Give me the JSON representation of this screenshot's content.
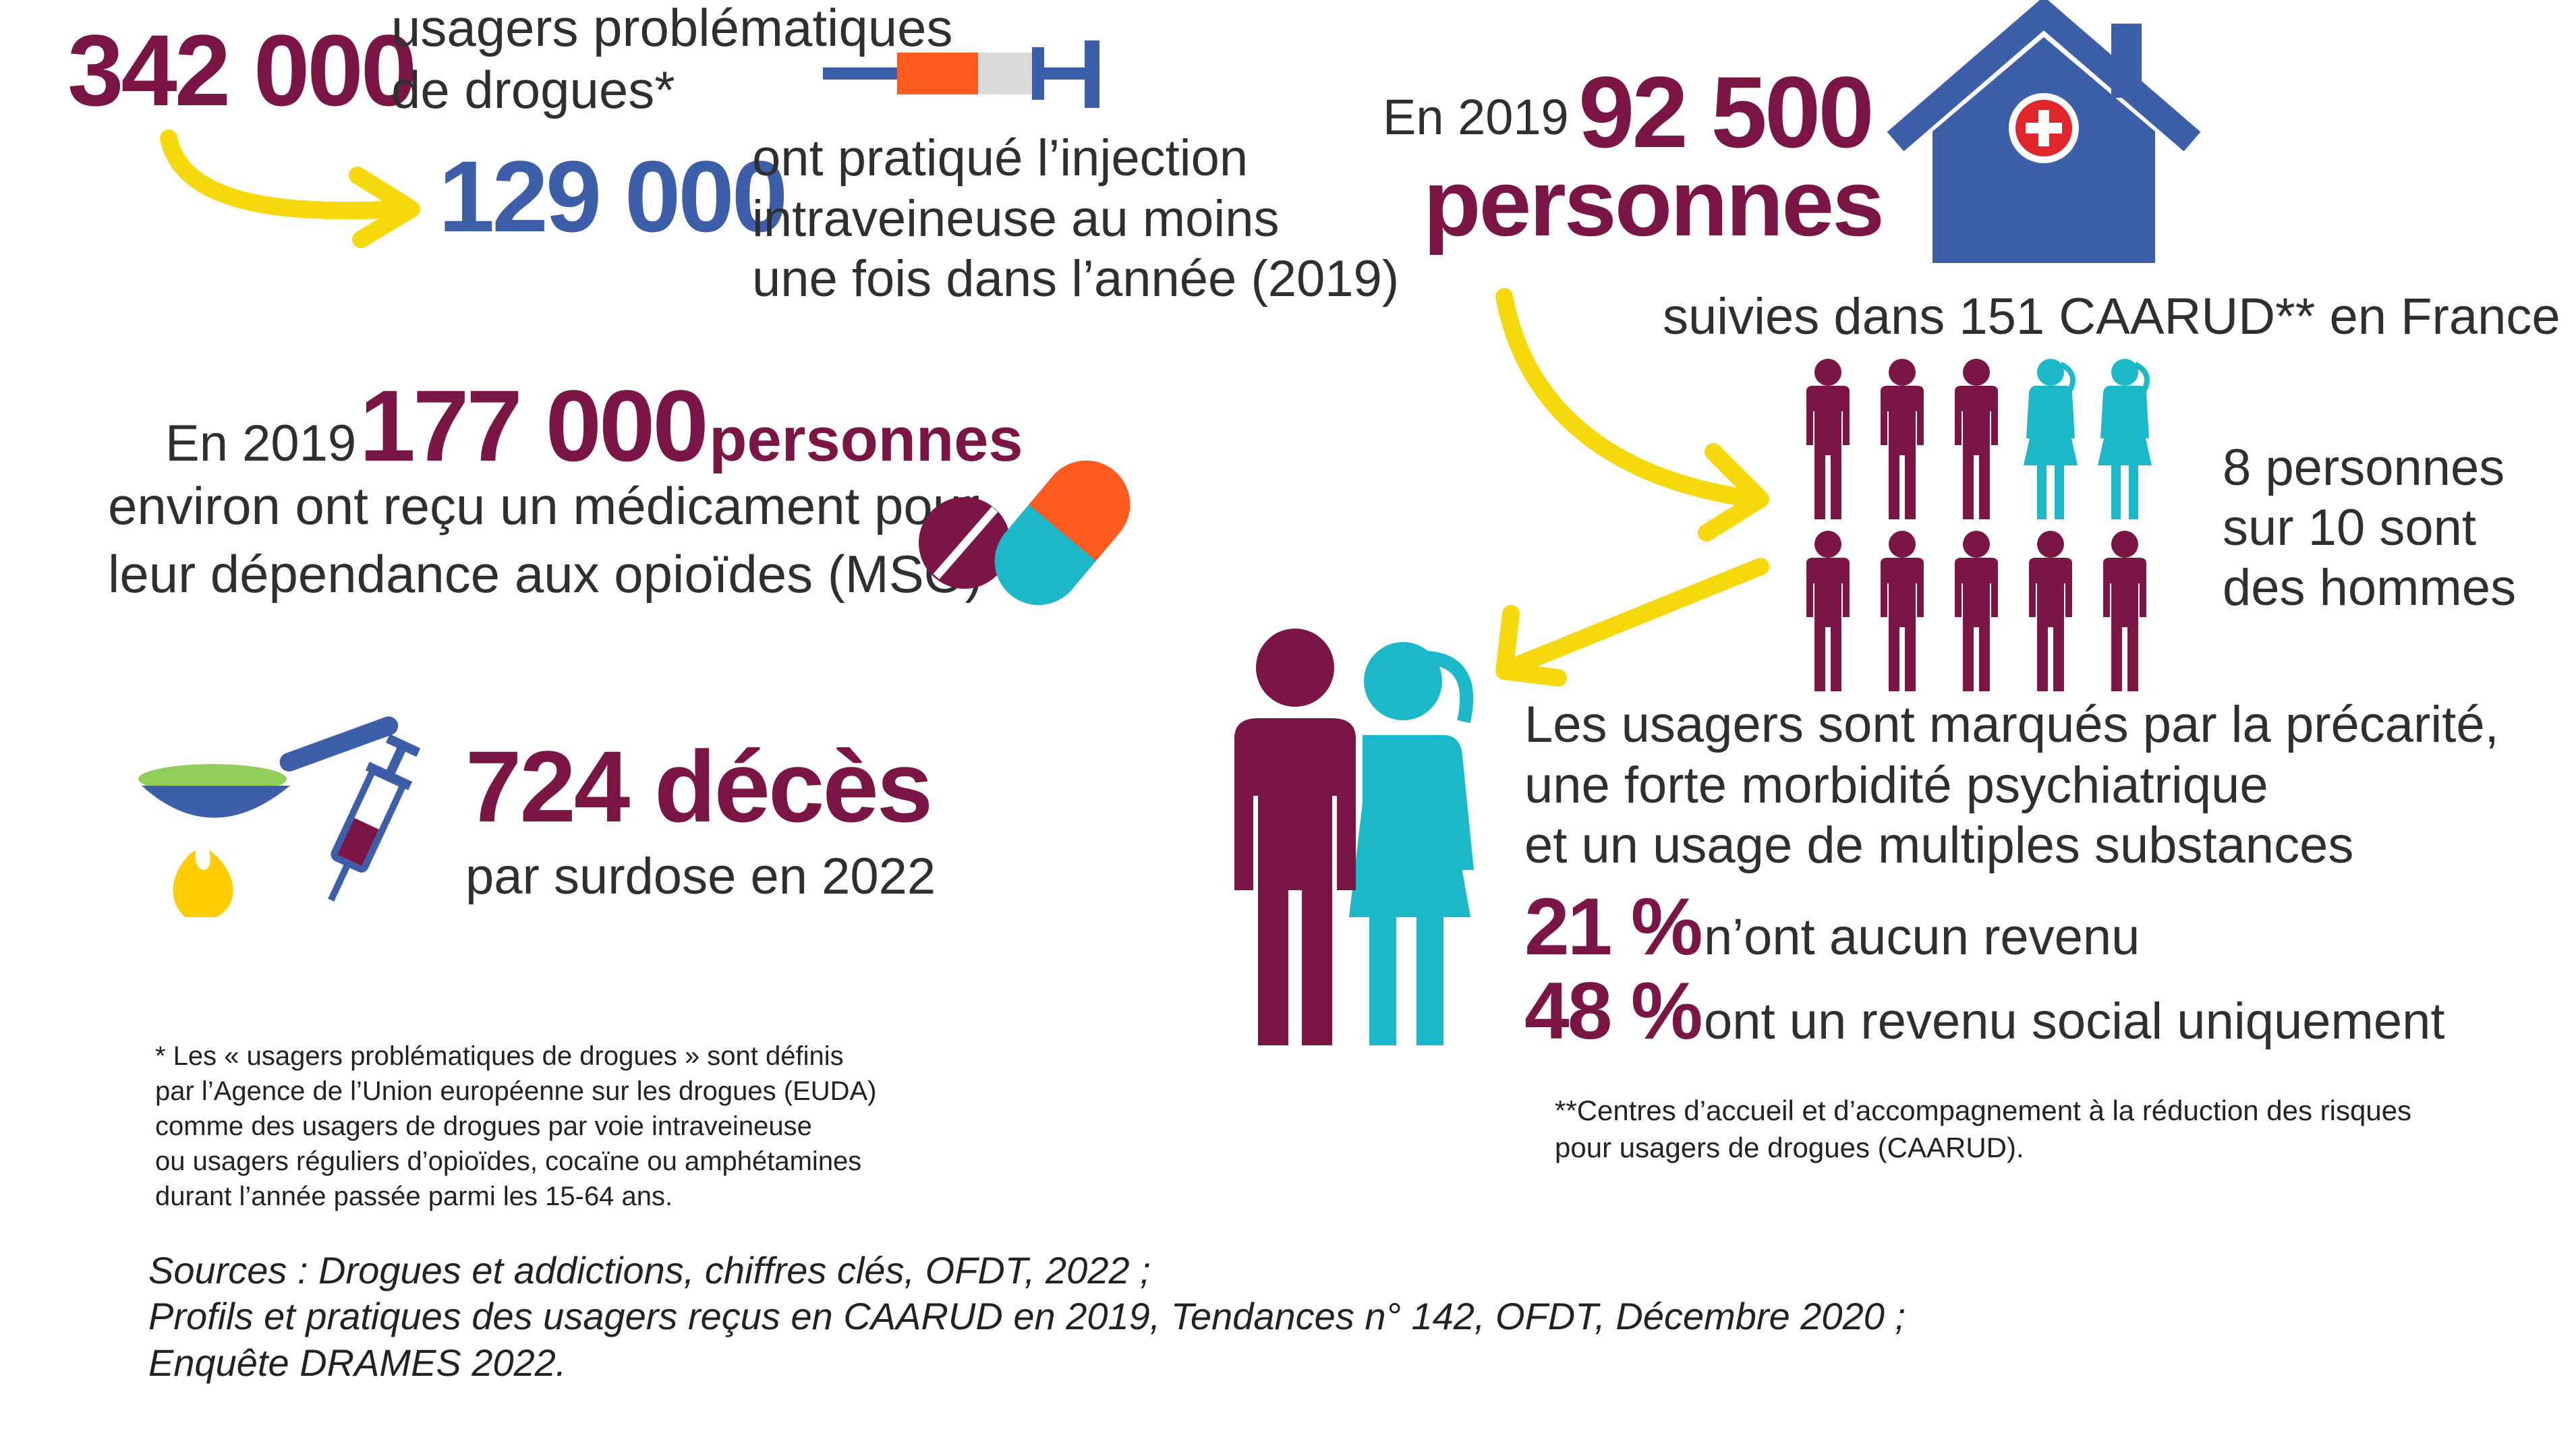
{
  "stat_users": {
    "number": "342 000",
    "text_line1": "usagers problématiques",
    "text_line2": "de drogues*"
  },
  "stat_injection": {
    "number": "129 000",
    "line1": "ont pratiqué l’injection",
    "line2": "intraveineuse au moins",
    "line3": "une fois dans l’année (2019)"
  },
  "stat_mso": {
    "prefix": "En 2019",
    "number": "177 000",
    "unit": "personnes",
    "line1": "environ ont reçu un médicament pour",
    "line2": "leur dépendance aux opioïdes (MSO)"
  },
  "stat_deaths": {
    "number": "724 décès",
    "text": "par surdose en 2022"
  },
  "stat_caarud": {
    "prefix": "En 2019",
    "number": "92 500",
    "unit": "personnes",
    "followed": "suivies dans 151 CAARUD** en France"
  },
  "gender_ratio": {
    "line1": "8 personnes",
    "line2": "sur 10 sont",
    "line3": "des hommes",
    "men": 8,
    "women": 2
  },
  "precarity": {
    "line1": "Les usagers sont marqués par la précarité,",
    "line2": "une forte morbidité psychiatrique",
    "line3": "et un usage de multiples substances",
    "stat1_value": "21 %",
    "stat1_text": "n’ont aucun revenu",
    "stat2_value": "48 %",
    "stat2_text": "ont un revenu social uniquement"
  },
  "footnote1": {
    "line1": "* Les « usagers problématiques de drogues » sont définis",
    "line2": "par l’Agence de l’Union européenne sur les drogues (EUDA)",
    "line3": "comme des usagers de drogues par voie intraveineuse",
    "line4": "ou usagers réguliers d’opioïdes, cocaïne ou amphétamines",
    "line5": "durant l’année passée parmi les 15-64 ans."
  },
  "footnote2": {
    "line1": "**Centres d’accueil et d’accompagnement à la réduction des risques",
    "line2": "pour usagers de drogues (CAARUD)."
  },
  "sources": {
    "line1": "Sources : Drogues et addictions, chiffres clés, OFDT, 2022 ;",
    "line2": "Profils et pratiques des usagers reçus en CAARUD en 2019, Tendances n° 142, OFDT, Décembre 2020 ;",
    "line3": "Enquête DRAMES 2022."
  },
  "colors": {
    "burgundy": "#7a1545",
    "blue": "#3d5ea8",
    "cyan": "#1ab8c8",
    "yellow": "#f5d90a",
    "orange": "#ff5a1f",
    "green": "#8fcf5a"
  },
  "icons": [
    "syringe-icon",
    "house-medical-icon",
    "pill-capsule-icon",
    "spoon-flame-syringe-icon",
    "man-woman-icon",
    "people-grid-icon",
    "arrow-icon"
  ]
}
